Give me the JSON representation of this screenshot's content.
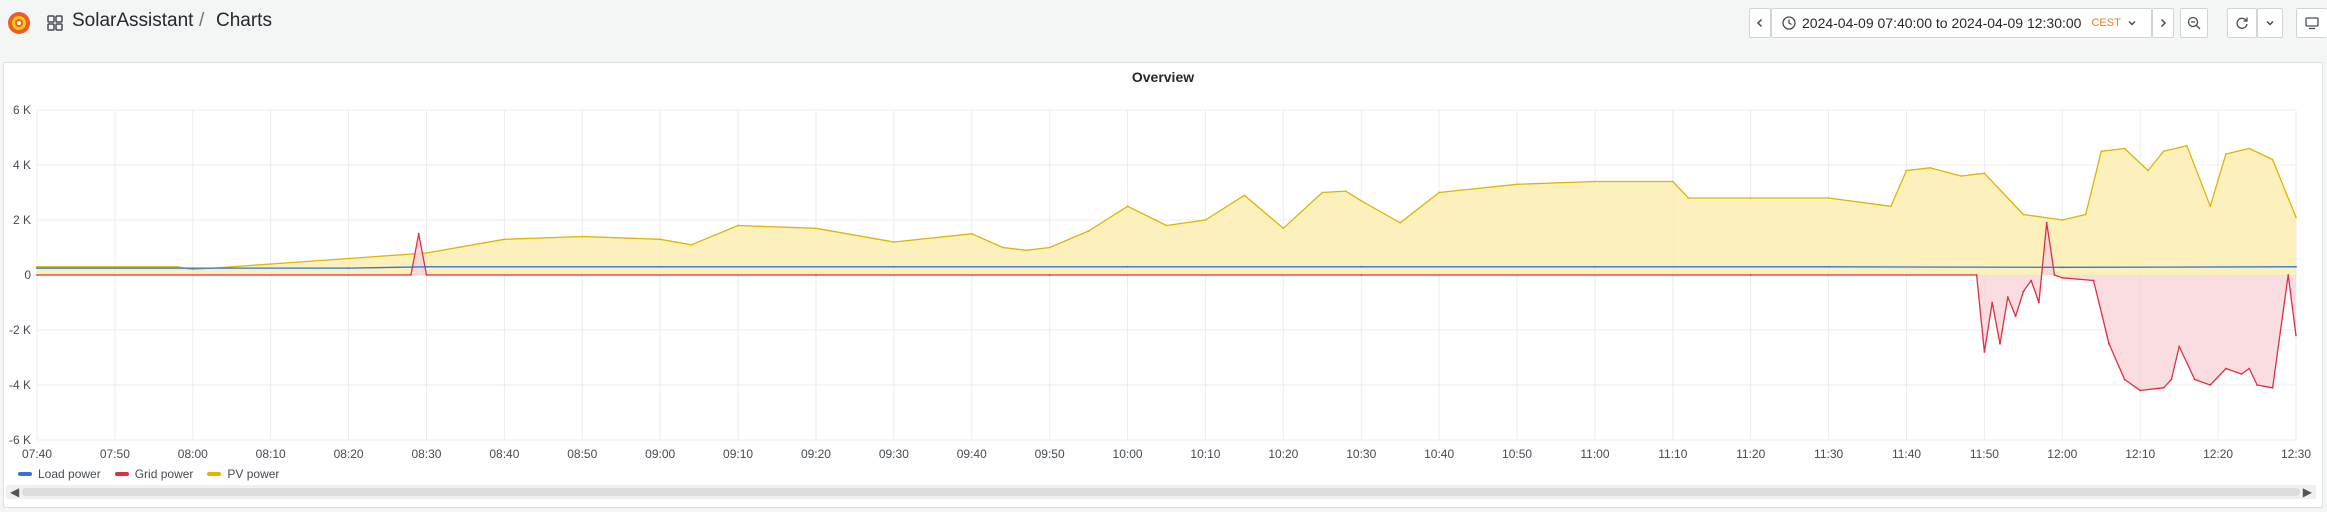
{
  "header": {
    "app_name": "SolarAssistant",
    "separator": "/",
    "page_title": "Charts",
    "time_range": "2024-04-09 07:40:00 to 2024-04-09 12:30:00",
    "timezone": "CEST"
  },
  "icons": {
    "logo": "grafana-logo-icon",
    "apps": "apps-grid-icon",
    "prev": "chevron-left-icon",
    "clock": "clock-icon",
    "dropdown": "chevron-down-icon",
    "next": "chevron-right-icon",
    "zoom_out": "zoom-out-icon",
    "refresh": "refresh-icon",
    "refresh_menu": "chevron-down-icon",
    "tv": "tv-mode-icon"
  },
  "panel": {
    "title": "Overview"
  },
  "legend": [
    {
      "name": "Load power",
      "color": "#3274d9"
    },
    {
      "name": "Grid power",
      "color": "#e02f44"
    },
    {
      "name": "PV power",
      "color": "#e0b400"
    }
  ],
  "chart_data": {
    "type": "area",
    "title": "Overview",
    "xlabel": "",
    "ylabel": "",
    "ylim": [
      -6000,
      6000
    ],
    "y_ticks": [
      {
        "value": 6000,
        "label": "6 K"
      },
      {
        "value": 4000,
        "label": "4 K"
      },
      {
        "value": 2000,
        "label": "2 K"
      },
      {
        "value": 0,
        "label": "0"
      },
      {
        "value": -2000,
        "label": "-2 K"
      },
      {
        "value": -4000,
        "label": "-4 K"
      },
      {
        "value": -6000,
        "label": "-6 K"
      }
    ],
    "x_range": [
      "07:40",
      "12:30"
    ],
    "x_ticks": [
      "07:40",
      "07:50",
      "08:00",
      "08:10",
      "08:20",
      "08:30",
      "08:40",
      "08:50",
      "09:00",
      "09:10",
      "09:20",
      "09:30",
      "09:40",
      "09:50",
      "10:00",
      "10:10",
      "10:20",
      "10:30",
      "10:40",
      "10:50",
      "11:00",
      "11:10",
      "11:20",
      "11:30",
      "11:40",
      "11:50",
      "12:00",
      "12:10",
      "12:20",
      "12:30"
    ],
    "grid": true,
    "legend_position": "bottom-left",
    "series": [
      {
        "name": "PV power",
        "color": "#e0b400",
        "fill": "#fbeeb1",
        "x": [
          "07:40",
          "07:58",
          "08:00",
          "08:10",
          "08:20",
          "08:30",
          "08:40",
          "08:50",
          "09:00",
          "09:04",
          "09:10",
          "09:20",
          "09:30",
          "09:40",
          "09:44",
          "09:47",
          "09:50",
          "09:55",
          "10:00",
          "10:05",
          "10:10",
          "10:15",
          "10:20",
          "10:25",
          "10:28",
          "10:30",
          "10:35",
          "10:40",
          "10:50",
          "11:00",
          "11:10",
          "11:12",
          "11:20",
          "11:30",
          "11:38",
          "11:40",
          "11:43",
          "11:47",
          "11:50",
          "11:55",
          "12:00",
          "12:03",
          "12:05",
          "12:08",
          "12:11",
          "12:13",
          "12:16",
          "12:19",
          "12:21",
          "12:24",
          "12:27",
          "12:30"
        ],
        "y": [
          300,
          300,
          200,
          400,
          600,
          800,
          1300,
          1400,
          1300,
          1100,
          1800,
          1700,
          1200,
          1500,
          1000,
          900,
          1000,
          1600,
          2500,
          1800,
          2000,
          2900,
          1700,
          3000,
          3050,
          2700,
          1900,
          3000,
          3300,
          3400,
          3400,
          2800,
          2800,
          2800,
          2500,
          3800,
          3900,
          3600,
          3700,
          2200,
          2000,
          2200,
          4500,
          4600,
          3800,
          4500,
          4700,
          2500,
          4400,
          4600,
          4200,
          2100
        ]
      },
      {
        "name": "Load power",
        "color": "#3274d9",
        "x": [
          "07:40",
          "08:00",
          "08:20",
          "08:30",
          "09:00",
          "09:30",
          "10:00",
          "10:30",
          "11:00",
          "11:30",
          "12:00",
          "12:30"
        ],
        "y": [
          250,
          250,
          250,
          300,
          300,
          300,
          300,
          300,
          300,
          300,
          280,
          300
        ]
      },
      {
        "name": "Grid power",
        "color": "#e02f44",
        "fill": "#f8d7da",
        "x": [
          "07:40",
          "08:28",
          "08:29",
          "08:30",
          "09:20",
          "09:50",
          "10:30",
          "11:20",
          "11:49",
          "11:50",
          "11:51",
          "11:52",
          "11:53",
          "11:54",
          "11:55",
          "11:56",
          "11:57",
          "11:58",
          "11:59",
          "12:00",
          "12:04",
          "12:06",
          "12:08",
          "12:10",
          "12:13",
          "12:14",
          "12:15",
          "12:17",
          "12:19",
          "12:21",
          "12:23",
          "12:24",
          "12:25",
          "12:27",
          "12:29",
          "12:30"
        ],
        "y": [
          0,
          0,
          1500,
          0,
          0,
          0,
          0,
          0,
          0,
          -2800,
          -1000,
          -2500,
          -800,
          -1500,
          -600,
          -200,
          -1000,
          1900,
          0,
          -100,
          -200,
          -2500,
          -3800,
          -4200,
          -4100,
          -3800,
          -2600,
          -3800,
          -4000,
          -3400,
          -3600,
          -3400,
          -4000,
          -4100,
          0,
          -2200
        ]
      }
    ]
  }
}
